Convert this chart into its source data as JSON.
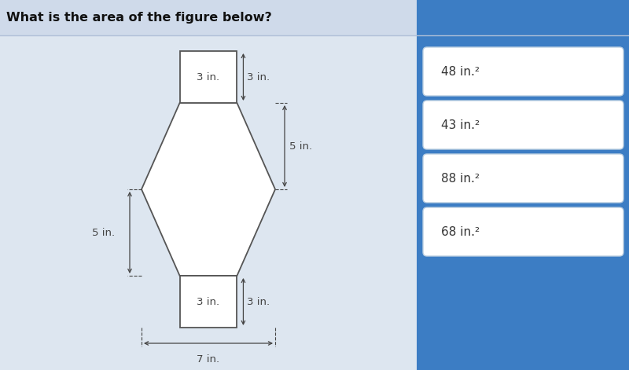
{
  "title": "What is the area of the figure below?",
  "bg_left": "#dde6f0",
  "bg_right": "#3c7dc4",
  "title_bg": "#cdd8e8",
  "title_color": "#111111",
  "shape_color": "#ffffff",
  "shape_edge": "#555555",
  "answer_bg": "#ffffff",
  "answer_text_color": "#333333",
  "answers": [
    "48 in.²",
    "43 in.²",
    "88 in.²",
    "68 in.²"
  ],
  "dim_labels": {
    "top_rect_width": "3 in.",
    "top_rect_height": "3 in.",
    "hex_half_height_right": "5 in.",
    "hex_half_height_left": "5 in.",
    "bot_rect_width": "3 in.",
    "bot_rect_height": "3 in.",
    "total_width": "7 in."
  }
}
